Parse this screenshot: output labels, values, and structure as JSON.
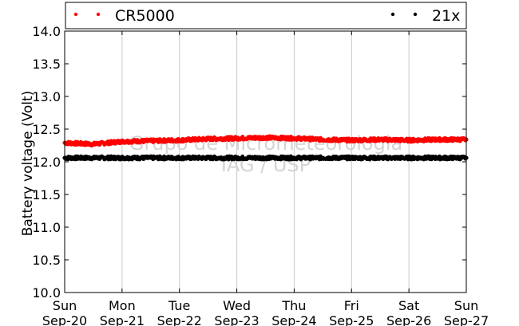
{
  "chart_data": {
    "type": "scatter",
    "ylabel": "Battery voltage (Volt)",
    "ylim": [
      10.0,
      14.0
    ],
    "y_ticks": [
      "10.0",
      "10.5",
      "11.0",
      "11.5",
      "12.0",
      "12.5",
      "13.0",
      "13.5",
      "14.0"
    ],
    "x_ticks": [
      {
        "day": "Sun",
        "date": "Sep-20"
      },
      {
        "day": "Mon",
        "date": "Sep-21"
      },
      {
        "day": "Tue",
        "date": "Sep-22"
      },
      {
        "day": "Wed",
        "date": "Sep-23"
      },
      {
        "day": "Thu",
        "date": "Sep-24"
      },
      {
        "day": "Fri",
        "date": "Sep-25"
      },
      {
        "day": "Sat",
        "date": "Sep-26"
      },
      {
        "day": "Sun",
        "date": "Sep-27"
      }
    ],
    "xlim": [
      "Sep-20",
      "Sep-27"
    ],
    "grid": "vertical",
    "legend_position": "top",
    "series": [
      {
        "name": "CR5000",
        "color": "#ff0000",
        "x": [
          "Sep-20",
          "Sep-20 12:00",
          "Sep-21",
          "Sep-21 12:00",
          "Sep-22",
          "Sep-22 12:00",
          "Sep-23",
          "Sep-23 12:00",
          "Sep-24",
          "Sep-24 12:00",
          "Sep-25",
          "Sep-25 12:00",
          "Sep-26",
          "Sep-26 12:00",
          "Sep-27"
        ],
        "values": [
          12.29,
          12.27,
          12.31,
          12.32,
          12.33,
          12.35,
          12.36,
          12.37,
          12.36,
          12.34,
          12.33,
          12.34,
          12.33,
          12.34,
          12.34
        ]
      },
      {
        "name": "21x",
        "color": "#000000",
        "x": [
          "Sep-20",
          "Sep-20 12:00",
          "Sep-21",
          "Sep-21 12:00",
          "Sep-22",
          "Sep-22 12:00",
          "Sep-23",
          "Sep-23 12:00",
          "Sep-24",
          "Sep-24 12:00",
          "Sep-25",
          "Sep-25 12:00",
          "Sep-26",
          "Sep-26 12:00",
          "Sep-27"
        ],
        "values": [
          12.06,
          12.06,
          12.06,
          12.06,
          12.06,
          12.06,
          12.06,
          12.06,
          12.06,
          12.06,
          12.06,
          12.06,
          12.06,
          12.06,
          12.06
        ]
      }
    ]
  },
  "watermark": {
    "line1": "Grupo de Micrometeorologia",
    "line2": "IAG / USP"
  }
}
